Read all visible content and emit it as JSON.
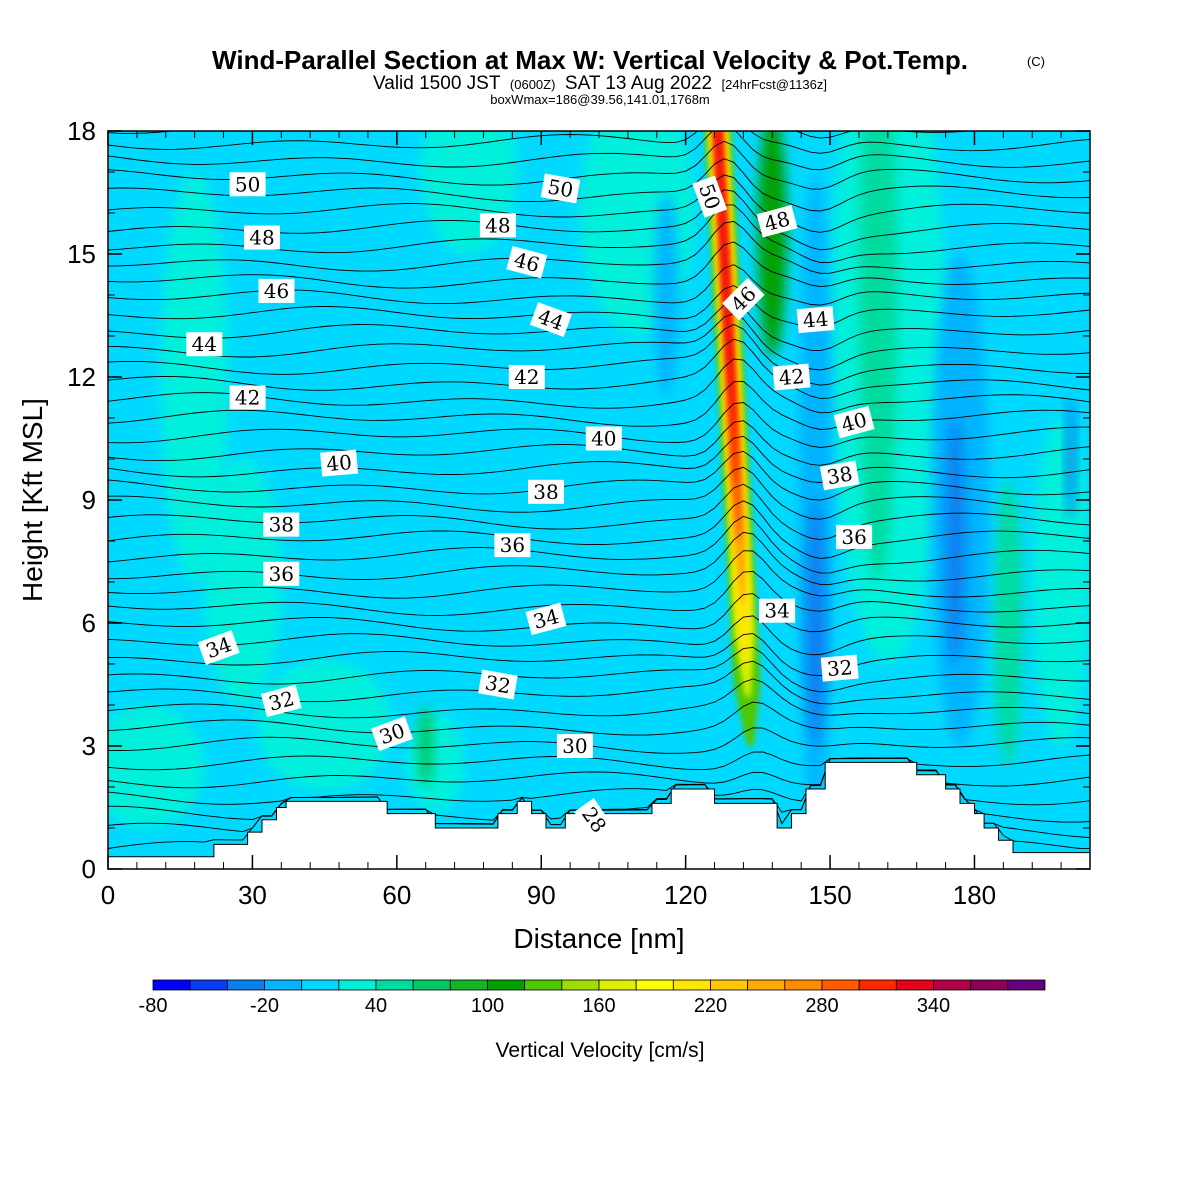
{
  "title": {
    "main": "Wind-Parallel Section at Max W: Vertical Velocity & Pot.Temp.",
    "copyright": "(C)",
    "valid_prefix": "Valid 1500 JST",
    "valid_utc": "(0600Z)",
    "valid_date": "SAT 13 Aug 2022",
    "forecast": "[24hrFcst@1136z]",
    "box_info": "boxWmax=186@39.56,141.01,1768m"
  },
  "chart_data": {
    "type": "heatmap",
    "xlabel": "Distance [nm]",
    "ylabel": "Height [Kft MSL]",
    "xlim": [
      0,
      204
    ],
    "ylim": [
      0,
      18
    ],
    "x_ticks": [
      0,
      30,
      60,
      90,
      120,
      150,
      180
    ],
    "x_tick_labels": [
      "0",
      "30",
      "60",
      "90",
      "120",
      "150",
      "180"
    ],
    "y_ticks": [
      0,
      3,
      6,
      9,
      12,
      15,
      18
    ],
    "y_tick_labels": [
      "0",
      "3",
      "6",
      "9",
      "12",
      "15",
      "18"
    ],
    "colorbar": {
      "title": "Vertical Velocity [cm/s]",
      "levels_start": -80,
      "levels_step": 20,
      "tick_values": [
        -80,
        -20,
        40,
        100,
        160,
        220,
        280,
        340
      ],
      "tick_labels": [
        "-80",
        "-20",
        "40",
        "100",
        "160",
        "220",
        "280",
        "340"
      ],
      "colors": [
        "#0000ff",
        "#0a3cf5",
        "#0a7ff0",
        "#00b4ff",
        "#00d9ff",
        "#00f0dc",
        "#00dca0",
        "#00c864",
        "#14b428",
        "#00a000",
        "#50c800",
        "#a0dc00",
        "#dcf000",
        "#ffff00",
        "#ffe600",
        "#ffc800",
        "#ffaa00",
        "#ff8c00",
        "#ff5a00",
        "#ff2800",
        "#e6001e",
        "#b40046",
        "#8c005a",
        "#64007f"
      ]
    },
    "theta_contours": [
      {
        "label": "28",
        "x": 101,
        "y": 1.2,
        "angle": 55
      },
      {
        "label": "30",
        "x": 59,
        "y": 3.3,
        "angle": -20
      },
      {
        "label": "30",
        "x": 97,
        "y": 3.0,
        "angle": 0
      },
      {
        "label": "32",
        "x": 36,
        "y": 4.1,
        "angle": -15
      },
      {
        "label": "32",
        "x": 81,
        "y": 4.5,
        "angle": 10
      },
      {
        "label": "32",
        "x": 152,
        "y": 4.9,
        "angle": -5
      },
      {
        "label": "34",
        "x": 23,
        "y": 5.4,
        "angle": -20
      },
      {
        "label": "34",
        "x": 91,
        "y": 6.1,
        "angle": -15
      },
      {
        "label": "34",
        "x": 139,
        "y": 6.3,
        "angle": 0
      },
      {
        "label": "36",
        "x": 36,
        "y": 7.2,
        "angle": 0
      },
      {
        "label": "36",
        "x": 84,
        "y": 7.9,
        "angle": 0
      },
      {
        "label": "36",
        "x": 155,
        "y": 8.1,
        "angle": 0
      },
      {
        "label": "38",
        "x": 36,
        "y": 8.4,
        "angle": 0
      },
      {
        "label": "38",
        "x": 91,
        "y": 9.2,
        "angle": 0
      },
      {
        "label": "38",
        "x": 152,
        "y": 9.6,
        "angle": -10
      },
      {
        "label": "40",
        "x": 48,
        "y": 9.9,
        "angle": -5
      },
      {
        "label": "40",
        "x": 103,
        "y": 10.5,
        "angle": 0
      },
      {
        "label": "40",
        "x": 155,
        "y": 10.9,
        "angle": -15
      },
      {
        "label": "42",
        "x": 29,
        "y": 11.5,
        "angle": 0
      },
      {
        "label": "42",
        "x": 87,
        "y": 12.0,
        "angle": 0
      },
      {
        "label": "42",
        "x": 142,
        "y": 12.0,
        "angle": -5
      },
      {
        "label": "44",
        "x": 20,
        "y": 12.8,
        "angle": 0
      },
      {
        "label": "44",
        "x": 92,
        "y": 13.4,
        "angle": 20
      },
      {
        "label": "44",
        "x": 147,
        "y": 13.4,
        "angle": -5
      },
      {
        "label": "46",
        "x": 35,
        "y": 14.1,
        "angle": 0
      },
      {
        "label": "46",
        "x": 87,
        "y": 14.8,
        "angle": 15
      },
      {
        "label": "46",
        "x": 132,
        "y": 13.9,
        "angle": -45
      },
      {
        "label": "48",
        "x": 32,
        "y": 15.4,
        "angle": 0
      },
      {
        "label": "48",
        "x": 81,
        "y": 15.7,
        "angle": 0
      },
      {
        "label": "48",
        "x": 139,
        "y": 15.8,
        "angle": -15
      },
      {
        "label": "50",
        "x": 29,
        "y": 16.7,
        "angle": 0
      },
      {
        "label": "50",
        "x": 94,
        "y": 16.6,
        "angle": 10
      },
      {
        "label": "50",
        "x": 125,
        "y": 16.4,
        "angle": 70
      }
    ],
    "terrain": [
      [
        0,
        0.3
      ],
      [
        22,
        0.3
      ],
      [
        22,
        0.6
      ],
      [
        29,
        0.6
      ],
      [
        29,
        0.9
      ],
      [
        32,
        0.9
      ],
      [
        32,
        1.2
      ],
      [
        35,
        1.2
      ],
      [
        35,
        1.5
      ],
      [
        37,
        1.5
      ],
      [
        37,
        1.65
      ],
      [
        58,
        1.65
      ],
      [
        58,
        1.35
      ],
      [
        68,
        1.35
      ],
      [
        68,
        1.0
      ],
      [
        81,
        1.0
      ],
      [
        81,
        1.35
      ],
      [
        85,
        1.35
      ],
      [
        85,
        1.65
      ],
      [
        88,
        1.65
      ],
      [
        88,
        1.35
      ],
      [
        91,
        1.35
      ],
      [
        91,
        1.0
      ],
      [
        95,
        1.0
      ],
      [
        95,
        1.35
      ],
      [
        113,
        1.35
      ],
      [
        113,
        1.6
      ],
      [
        117,
        1.6
      ],
      [
        117,
        1.95
      ],
      [
        126,
        1.95
      ],
      [
        126,
        1.6
      ],
      [
        139,
        1.6
      ],
      [
        139,
        1.0
      ],
      [
        142,
        1.0
      ],
      [
        142,
        1.35
      ],
      [
        145,
        1.35
      ],
      [
        145,
        1.95
      ],
      [
        149,
        1.95
      ],
      [
        149,
        2.6
      ],
      [
        168,
        2.6
      ],
      [
        168,
        2.3
      ],
      [
        174,
        2.3
      ],
      [
        174,
        1.95
      ],
      [
        177,
        1.95
      ],
      [
        177,
        1.6
      ],
      [
        180,
        1.6
      ],
      [
        180,
        1.35
      ],
      [
        182,
        1.35
      ],
      [
        182,
        1.0
      ],
      [
        185,
        1.0
      ],
      [
        185,
        0.7
      ],
      [
        188,
        0.7
      ],
      [
        188,
        0.4
      ],
      [
        204,
        0.4
      ]
    ]
  }
}
